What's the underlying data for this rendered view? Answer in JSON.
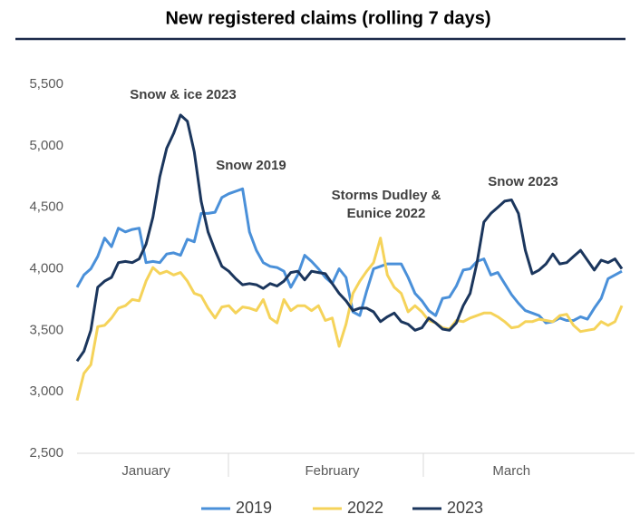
{
  "chart_data": {
    "type": "line",
    "title": "New registered claims (rolling 7 days)",
    "categories": [
      null,
      null,
      null,
      null,
      null,
      null,
      null,
      null,
      null,
      null,
      "January",
      null,
      null,
      null,
      null,
      null,
      null,
      null,
      null,
      null,
      null,
      null,
      null,
      null,
      null,
      null,
      null,
      null,
      null,
      null,
      null,
      null,
      null,
      null,
      null,
      null,
      null,
      "February",
      null,
      null,
      null,
      null,
      null,
      null,
      null,
      null,
      null,
      null,
      null,
      null,
      null,
      null,
      null,
      null,
      null,
      null,
      null,
      null,
      null,
      null,
      null,
      null,
      null,
      "March",
      null,
      null,
      null,
      null,
      null,
      null,
      null,
      null,
      null,
      null,
      null,
      null,
      null,
      null,
      null,
      null
    ],
    "series": [
      {
        "name": "2019",
        "color": "#4a90d9",
        "values": [
          3850,
          3950,
          4000,
          4100,
          4250,
          4180,
          4330,
          4300,
          4320,
          4330,
          4050,
          4060,
          4050,
          4120,
          4130,
          4110,
          4240,
          4220,
          4450,
          4450,
          4460,
          4580,
          4610,
          4630,
          4650,
          4300,
          4150,
          4050,
          4020,
          4010,
          3980,
          3850,
          3950,
          4110,
          4060,
          4000,
          3930,
          3880,
          4000,
          3930,
          3650,
          3620,
          3820,
          4000,
          4020,
          4040,
          4040,
          4040,
          3930,
          3800,
          3740,
          3660,
          3620,
          3760,
          3770,
          3860,
          3990,
          4000,
          4060,
          4080,
          3950,
          3970,
          3880,
          3790,
          3720,
          3660,
          3640,
          3620,
          3560,
          3570,
          3600,
          3580,
          3580,
          3610,
          3590,
          3680,
          3760,
          3920,
          3950,
          3980
        ]
      },
      {
        "name": "2022",
        "color": "#f5d35a",
        "values": [
          2930,
          3150,
          3220,
          3530,
          3540,
          3600,
          3680,
          3700,
          3750,
          3740,
          3900,
          4010,
          3960,
          3980,
          3950,
          3970,
          3900,
          3800,
          3780,
          3680,
          3600,
          3690,
          3700,
          3640,
          3690,
          3680,
          3660,
          3750,
          3600,
          3560,
          3750,
          3660,
          3700,
          3700,
          3660,
          3700,
          3580,
          3600,
          3370,
          3550,
          3800,
          3900,
          3980,
          4050,
          4250,
          3950,
          3850,
          3800,
          3650,
          3700,
          3650,
          3580,
          3560,
          3520,
          3510,
          3580,
          3570,
          3600,
          3620,
          3640,
          3640,
          3610,
          3570,
          3520,
          3530,
          3570,
          3570,
          3590,
          3580,
          3570,
          3620,
          3630,
          3540,
          3490,
          3500,
          3510,
          3570,
          3540,
          3570,
          3700
        ]
      },
      {
        "name": "2023",
        "color": "#1b365d",
        "values": [
          3250,
          3330,
          3500,
          3850,
          3900,
          3930,
          4050,
          4060,
          4050,
          4080,
          4200,
          4420,
          4750,
          4980,
          5100,
          5250,
          5200,
          4950,
          4550,
          4300,
          4150,
          4020,
          3980,
          3920,
          3870,
          3880,
          3870,
          3840,
          3880,
          3860,
          3900,
          3970,
          3980,
          3910,
          3980,
          3970,
          3960,
          3880,
          3800,
          3740,
          3660,
          3680,
          3680,
          3650,
          3570,
          3610,
          3640,
          3570,
          3550,
          3500,
          3520,
          3600,
          3560,
          3510,
          3500,
          3560,
          3700,
          3800,
          4050,
          4380,
          4450,
          4500,
          4550,
          4560,
          4450,
          4150,
          3960,
          3990,
          4040,
          4120,
          4040,
          4050,
          4100,
          4150,
          4070,
          3990,
          4070,
          4050,
          4080,
          4000
        ]
      }
    ],
    "ylim": [
      2500,
      5500
    ],
    "yticks": [
      {
        "value": 2500,
        "label": "2,500"
      },
      {
        "value": 3000,
        "label": "3,000"
      },
      {
        "value": 3500,
        "label": "3,500"
      },
      {
        "value": 4000,
        "label": "4,000"
      },
      {
        "value": 4500,
        "label": "4,500"
      },
      {
        "value": 5000,
        "label": "5,000"
      },
      {
        "value": 5500,
        "label": "5,500"
      }
    ],
    "grid": false,
    "legend": "bottom",
    "annotations": [
      [
        "Snow & ice 2023"
      ],
      [
        "Snow 2019"
      ],
      [
        "Storms Dudley &",
        "Eunice 2022"
      ],
      [
        "Snow 2023"
      ]
    ]
  }
}
